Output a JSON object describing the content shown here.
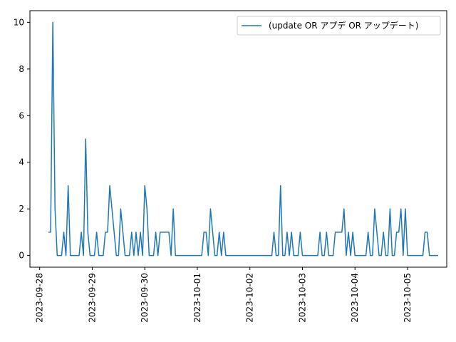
{
  "chart_data": {
    "type": "line",
    "title": "",
    "xlabel": "",
    "ylabel": "",
    "x_axis": {
      "type": "date",
      "range": [
        "2023-09-28T04:00",
        "2023-10-05T14:00"
      ],
      "ticks": [
        "2023-09-28",
        "2023-09-29",
        "2023-09-30",
        "2023-10-01",
        "2023-10-02",
        "2023-10-03",
        "2023-10-04",
        "2023-10-05"
      ]
    },
    "y_axis": {
      "range": [
        -0.5,
        10.5
      ],
      "ticks": [
        0,
        2,
        4,
        6,
        8,
        10
      ]
    },
    "grid": false,
    "legend_position": "top-right",
    "colors": {
      "series": "#1f77b4",
      "axes": "#000000",
      "legend_border": "#cccccc"
    },
    "series": [
      {
        "name": "(update OR アプデ OR アップデート)",
        "x": [
          "2023-09-28T04:00",
          "2023-09-28T05:00",
          "2023-09-28T06:00",
          "2023-09-28T07:00",
          "2023-09-28T08:00",
          "2023-09-28T09:00",
          "2023-09-28T10:00",
          "2023-09-28T11:00",
          "2023-09-28T12:00",
          "2023-09-28T13:00",
          "2023-09-28T14:00",
          "2023-09-28T15:00",
          "2023-09-28T16:00",
          "2023-09-28T17:00",
          "2023-09-28T18:00",
          "2023-09-28T19:00",
          "2023-09-28T20:00",
          "2023-09-28T21:00",
          "2023-09-28T22:00",
          "2023-09-28T23:00",
          "2023-09-29T00:00",
          "2023-09-29T01:00",
          "2023-09-29T02:00",
          "2023-09-29T03:00",
          "2023-09-29T04:00",
          "2023-09-29T05:00",
          "2023-09-29T06:00",
          "2023-09-29T07:00",
          "2023-09-29T08:00",
          "2023-09-29T09:00",
          "2023-09-29T10:00",
          "2023-09-29T11:00",
          "2023-09-29T12:00",
          "2023-09-29T13:00",
          "2023-09-29T14:00",
          "2023-09-29T15:00",
          "2023-09-29T16:00",
          "2023-09-29T17:00",
          "2023-09-29T18:00",
          "2023-09-29T19:00",
          "2023-09-29T20:00",
          "2023-09-29T21:00",
          "2023-09-29T22:00",
          "2023-09-29T23:00",
          "2023-09-30T00:00",
          "2023-09-30T01:00",
          "2023-09-30T02:00",
          "2023-09-30T03:00",
          "2023-09-30T04:00",
          "2023-09-30T05:00",
          "2023-09-30T06:00",
          "2023-09-30T07:00",
          "2023-09-30T08:00",
          "2023-09-30T09:00",
          "2023-09-30T10:00",
          "2023-09-30T11:00",
          "2023-09-30T12:00",
          "2023-09-30T13:00",
          "2023-09-30T14:00",
          "2023-09-30T15:00",
          "2023-09-30T16:00",
          "2023-09-30T17:00",
          "2023-09-30T18:00",
          "2023-09-30T19:00",
          "2023-09-30T20:00",
          "2023-09-30T21:00",
          "2023-09-30T22:00",
          "2023-09-30T23:00",
          "2023-10-01T00:00",
          "2023-10-01T01:00",
          "2023-10-01T02:00",
          "2023-10-01T03:00",
          "2023-10-01T04:00",
          "2023-10-01T05:00",
          "2023-10-01T06:00",
          "2023-10-01T07:00",
          "2023-10-01T08:00",
          "2023-10-01T09:00",
          "2023-10-01T10:00",
          "2023-10-01T11:00",
          "2023-10-01T12:00",
          "2023-10-01T13:00",
          "2023-10-01T14:00",
          "2023-10-01T15:00",
          "2023-10-01T16:00",
          "2023-10-01T17:00",
          "2023-10-01T18:00",
          "2023-10-01T19:00",
          "2023-10-01T20:00",
          "2023-10-01T21:00",
          "2023-10-01T22:00",
          "2023-10-01T23:00",
          "2023-10-02T00:00",
          "2023-10-02T01:00",
          "2023-10-02T02:00",
          "2023-10-02T03:00",
          "2023-10-02T04:00",
          "2023-10-02T05:00",
          "2023-10-02T06:00",
          "2023-10-02T07:00",
          "2023-10-02T08:00",
          "2023-10-02T09:00",
          "2023-10-02T10:00",
          "2023-10-02T11:00",
          "2023-10-02T12:00",
          "2023-10-02T13:00",
          "2023-10-02T14:00",
          "2023-10-02T15:00",
          "2023-10-02T16:00",
          "2023-10-02T17:00",
          "2023-10-02T18:00",
          "2023-10-02T19:00",
          "2023-10-02T20:00",
          "2023-10-02T21:00",
          "2023-10-02T22:00",
          "2023-10-02T23:00",
          "2023-10-03T00:00",
          "2023-10-03T01:00",
          "2023-10-03T02:00",
          "2023-10-03T03:00",
          "2023-10-03T04:00",
          "2023-10-03T05:00",
          "2023-10-03T06:00",
          "2023-10-03T07:00",
          "2023-10-03T08:00",
          "2023-10-03T09:00",
          "2023-10-03T10:00",
          "2023-10-03T11:00",
          "2023-10-03T12:00",
          "2023-10-03T13:00",
          "2023-10-03T14:00",
          "2023-10-03T15:00",
          "2023-10-03T16:00",
          "2023-10-03T17:00",
          "2023-10-03T18:00",
          "2023-10-03T19:00",
          "2023-10-03T20:00",
          "2023-10-03T21:00",
          "2023-10-03T22:00",
          "2023-10-03T23:00",
          "2023-10-04T00:00",
          "2023-10-04T01:00",
          "2023-10-04T02:00",
          "2023-10-04T03:00",
          "2023-10-04T04:00",
          "2023-10-04T05:00",
          "2023-10-04T06:00",
          "2023-10-04T07:00",
          "2023-10-04T08:00",
          "2023-10-04T09:00",
          "2023-10-04T10:00",
          "2023-10-04T11:00",
          "2023-10-04T12:00",
          "2023-10-04T13:00",
          "2023-10-04T14:00",
          "2023-10-04T15:00",
          "2023-10-04T16:00",
          "2023-10-04T17:00",
          "2023-10-04T18:00",
          "2023-10-04T19:00",
          "2023-10-04T20:00",
          "2023-10-04T21:00",
          "2023-10-04T22:00",
          "2023-10-04T23:00",
          "2023-10-05T00:00",
          "2023-10-05T01:00",
          "2023-10-05T02:00",
          "2023-10-05T03:00",
          "2023-10-05T04:00",
          "2023-10-05T05:00",
          "2023-10-05T06:00",
          "2023-10-05T07:00",
          "2023-10-05T08:00",
          "2023-10-05T09:00",
          "2023-10-05T10:00",
          "2023-10-05T11:00",
          "2023-10-05T12:00",
          "2023-10-05T13:00",
          "2023-10-05T14:00"
        ],
        "values": [
          1,
          1,
          10,
          2,
          0,
          0,
          0,
          1,
          0,
          3,
          0,
          0,
          0,
          0,
          0,
          1,
          0,
          5,
          1,
          0,
          0,
          0,
          1,
          0,
          0,
          0,
          1,
          1,
          3,
          2,
          1,
          0,
          0,
          2,
          1,
          0,
          0,
          0,
          1,
          0,
          1,
          0,
          1,
          0,
          3,
          2,
          0,
          0,
          0,
          1,
          0,
          1,
          1,
          1,
          1,
          1,
          0,
          2,
          0,
          0,
          0,
          0,
          0,
          0,
          0,
          0,
          0,
          0,
          0,
          0,
          0,
          1,
          1,
          0,
          2,
          1,
          0,
          0,
          1,
          0,
          1,
          0,
          0,
          0,
          0,
          0,
          0,
          0,
          0,
          0,
          0,
          0,
          0,
          0,
          0,
          0,
          0,
          0,
          0,
          0,
          0,
          0,
          0,
          1,
          0,
          0,
          3,
          0,
          0,
          1,
          0,
          1,
          0,
          0,
          0,
          1,
          0,
          0,
          0,
          0,
          0,
          0,
          0,
          0,
          1,
          0,
          0,
          1,
          0,
          0,
          0,
          1,
          1,
          1,
          1,
          2,
          0,
          1,
          0,
          1,
          0,
          0,
          0,
          0,
          0,
          0,
          1,
          0,
          0,
          2,
          1,
          0,
          0,
          1,
          0,
          0,
          2,
          0,
          0,
          1,
          1,
          2,
          0,
          2,
          0,
          0,
          0,
          0,
          0,
          0,
          0,
          0,
          1,
          1,
          0,
          0,
          0,
          0,
          0
        ]
      }
    ]
  }
}
